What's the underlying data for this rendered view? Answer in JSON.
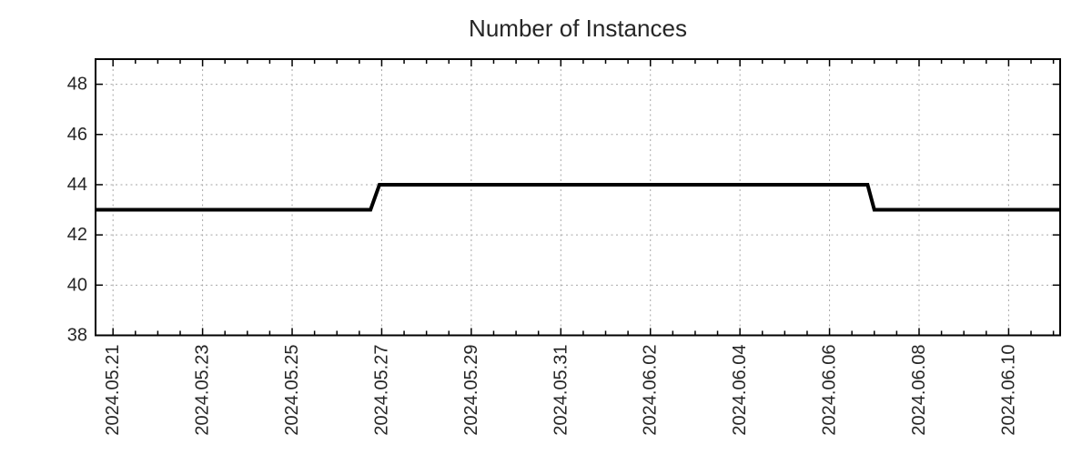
{
  "chart_data": {
    "type": "line",
    "title": "Number of Instances",
    "x_axis": {
      "unit": "date",
      "tick_labels": [
        "2024.05.21",
        "2024.05.23",
        "2024.05.25",
        "2024.05.27",
        "2024.05.29",
        "2024.05.31",
        "2024.06.02",
        "2024.06.04",
        "2024.06.06",
        "2024.06.08",
        "2024.06.10"
      ],
      "tick_positions_days": [
        0,
        2,
        4,
        6,
        8,
        10,
        12,
        14,
        16,
        18,
        20
      ],
      "minor_tick_step_days": 0.5,
      "range_days": [
        -0.39,
        21.15
      ]
    },
    "y_axis": {
      "tick_labels": [
        38,
        40,
        42,
        44,
        46,
        48
      ],
      "range": [
        38,
        49
      ]
    },
    "series": [
      {
        "name": "instances",
        "color": "#000000",
        "points": [
          [
            -0.39,
            43
          ],
          [
            5.75,
            43
          ],
          [
            5.95,
            44
          ],
          [
            16.85,
            44
          ],
          [
            17.0,
            43
          ],
          [
            21.15,
            43
          ]
        ]
      }
    ],
    "grid": {
      "show": true,
      "style": "dotted"
    },
    "legend": {
      "show": false
    },
    "colors": {
      "line": "#000000",
      "grid": "#a6a6a6",
      "axis": "#000000",
      "text": "#262626",
      "background": "#ffffff"
    }
  }
}
